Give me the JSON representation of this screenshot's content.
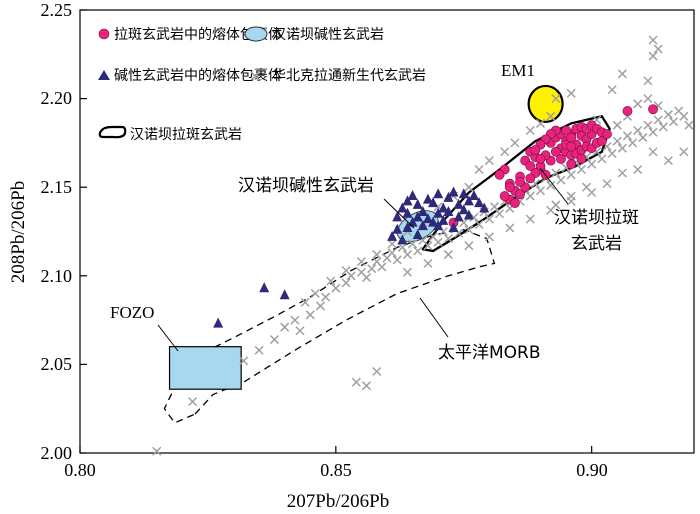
{
  "chart_data": {
    "type": "scatter",
    "xlabel": "207Pb/206Pb",
    "ylabel": "208Pb/206Pb",
    "xlim": [
      0.8,
      0.92
    ],
    "ylim": [
      2.0,
      2.25
    ],
    "xticks": [
      "0.80",
      "0.85",
      "0.90"
    ],
    "yticks": [
      "2.00",
      "2.05",
      "2.10",
      "2.15",
      "2.20",
      "2.25"
    ],
    "legend": {
      "items": [
        {
          "label": "拉斑玄武岩中的熔体包裹体",
          "marker": "circle",
          "color": "#e8237d"
        },
        {
          "label": "碱性玄武岩中的熔体包裹体",
          "marker": "triangle",
          "color": "#2e2a7a"
        },
        {
          "label": "汉诺坝拉斑玄武岩",
          "marker": "outline",
          "color": "#000000"
        },
        {
          "label": "汉诺坝碱性玄武岩",
          "marker": "ellipse",
          "color": "#a8d8ef"
        },
        {
          "label": "华北克拉通新生代玄武岩",
          "marker": "x",
          "color": "#a0a0a0"
        }
      ]
    },
    "annotations": {
      "em1": "EM1",
      "fozo": "FOZO",
      "morb": "太平洋MORB",
      "alkali_field": "汉诺坝碱性玄武岩",
      "tholeiite_field_line1": "汉诺坝拉斑",
      "tholeiite_field_line2": "玄武岩"
    },
    "series": [
      {
        "name": "拉斑玄武岩中的熔体包裹体",
        "marker": "circle",
        "color": "#e8237d",
        "points": [
          [
            0.883,
            2.16
          ],
          [
            0.884,
            2.152
          ],
          [
            0.885,
            2.148
          ],
          [
            0.886,
            2.156
          ],
          [
            0.884,
            2.143
          ],
          [
            0.887,
            2.165
          ],
          [
            0.888,
            2.17
          ],
          [
            0.889,
            2.167
          ],
          [
            0.89,
            2.16
          ],
          [
            0.891,
            2.157
          ],
          [
            0.892,
            2.175
          ],
          [
            0.893,
            2.178
          ],
          [
            0.894,
            2.172
          ],
          [
            0.895,
            2.176
          ],
          [
            0.896,
            2.18
          ],
          [
            0.897,
            2.174
          ],
          [
            0.898,
            2.179
          ],
          [
            0.899,
            2.177
          ],
          [
            0.9,
            2.18
          ],
          [
            0.893,
            2.17
          ],
          [
            0.894,
            2.166
          ],
          [
            0.895,
            2.17
          ],
          [
            0.896,
            2.168
          ],
          [
            0.897,
            2.169
          ],
          [
            0.898,
            2.171
          ],
          [
            0.899,
            2.173
          ],
          [
            0.9,
            2.172
          ],
          [
            0.901,
            2.175
          ],
          [
            0.902,
            2.176
          ],
          [
            0.892,
            2.165
          ],
          [
            0.891,
            2.168
          ],
          [
            0.89,
            2.162
          ],
          [
            0.889,
            2.158
          ],
          [
            0.888,
            2.155
          ],
          [
            0.887,
            2.15
          ],
          [
            0.886,
            2.146
          ],
          [
            0.885,
            2.141
          ],
          [
            0.883,
            2.145
          ],
          [
            0.894,
            2.18
          ],
          [
            0.895,
            2.182
          ],
          [
            0.896,
            2.178
          ],
          [
            0.897,
            2.183
          ],
          [
            0.898,
            2.184
          ],
          [
            0.899,
            2.183
          ],
          [
            0.9,
            2.185
          ],
          [
            0.901,
            2.183
          ],
          [
            0.902,
            2.181
          ],
          [
            0.903,
            2.18
          ],
          [
            0.895,
            2.174
          ],
          [
            0.893,
            2.182
          ],
          [
            0.892,
            2.18
          ],
          [
            0.891,
            2.177
          ],
          [
            0.89,
            2.174
          ],
          [
            0.889,
            2.171
          ],
          [
            0.888,
            2.162
          ],
          [
            0.886,
            2.153
          ],
          [
            0.884,
            2.15
          ],
          [
            0.882,
            2.157
          ],
          [
            0.89,
            2.166
          ],
          [
            0.896,
            2.173
          ],
          [
            0.907,
            2.193
          ],
          [
            0.912,
            2.194
          ],
          [
            0.898,
            2.166
          ],
          [
            0.896,
            2.163
          ],
          [
            0.873,
            2.13
          ]
        ]
      },
      {
        "name": "碱性玄武岩中的熔体包裹体",
        "marker": "triangle",
        "color": "#2e2a7a",
        "points": [
          [
            0.827,
            2.073
          ],
          [
            0.836,
            2.093
          ],
          [
            0.84,
            2.089
          ],
          [
            0.862,
            2.133
          ],
          [
            0.863,
            2.138
          ],
          [
            0.864,
            2.142
          ],
          [
            0.865,
            2.145
          ],
          [
            0.866,
            2.14
          ],
          [
            0.867,
            2.136
          ],
          [
            0.868,
            2.143
          ],
          [
            0.869,
            2.141
          ],
          [
            0.87,
            2.146
          ],
          [
            0.871,
            2.138
          ],
          [
            0.872,
            2.144
          ],
          [
            0.873,
            2.147
          ],
          [
            0.874,
            2.14
          ],
          [
            0.875,
            2.137
          ],
          [
            0.876,
            2.142
          ],
          [
            0.866,
            2.133
          ],
          [
            0.865,
            2.13
          ],
          [
            0.868,
            2.132
          ],
          [
            0.87,
            2.135
          ],
          [
            0.872,
            2.136
          ],
          [
            0.874,
            2.133
          ],
          [
            0.864,
            2.127
          ],
          [
            0.867,
            2.128
          ],
          [
            0.869,
            2.13
          ],
          [
            0.871,
            2.131
          ],
          [
            0.862,
            2.126
          ],
          [
            0.861,
            2.122
          ],
          [
            0.863,
            2.12
          ],
          [
            0.866,
            2.123
          ],
          [
            0.87,
            2.128
          ],
          [
            0.873,
            2.127
          ],
          [
            0.876,
            2.134
          ],
          [
            0.878,
            2.141
          ],
          [
            0.879,
            2.138
          ],
          [
            0.877,
            2.145
          ],
          [
            0.875,
            2.146
          ],
          [
            0.864,
            2.135
          ]
        ]
      },
      {
        "name": "华北克拉通新生代玄武岩",
        "marker": "x",
        "color": "#a0a0a0",
        "points": [
          [
            0.815,
            2.001
          ],
          [
            0.822,
            2.029
          ],
          [
            0.832,
            2.052
          ],
          [
            0.835,
            2.058
          ],
          [
            0.838,
            2.064
          ],
          [
            0.84,
            2.071
          ],
          [
            0.842,
            2.075
          ],
          [
            0.843,
            2.069
          ],
          [
            0.845,
            2.078
          ],
          [
            0.847,
            2.083
          ],
          [
            0.848,
            2.088
          ],
          [
            0.85,
            2.093
          ],
          [
            0.852,
            2.096
          ],
          [
            0.853,
            2.1
          ],
          [
            0.855,
            2.102
          ],
          [
            0.856,
            2.099
          ],
          [
            0.857,
            2.104
          ],
          [
            0.858,
            2.108
          ],
          [
            0.859,
            2.105
          ],
          [
            0.86,
            2.11
          ],
          [
            0.861,
            2.113
          ],
          [
            0.862,
            2.109
          ],
          [
            0.863,
            2.116
          ],
          [
            0.864,
            2.112
          ],
          [
            0.865,
            2.118
          ],
          [
            0.866,
            2.114
          ],
          [
            0.867,
            2.12
          ],
          [
            0.868,
            2.117
          ],
          [
            0.869,
            2.122
          ],
          [
            0.87,
            2.119
          ],
          [
            0.871,
            2.125
          ],
          [
            0.872,
            2.121
          ],
          [
            0.873,
            2.127
          ],
          [
            0.874,
            2.124
          ],
          [
            0.875,
            2.13
          ],
          [
            0.876,
            2.126
          ],
          [
            0.877,
            2.133
          ],
          [
            0.878,
            2.129
          ],
          [
            0.879,
            2.136
          ],
          [
            0.88,
            2.132
          ],
          [
            0.881,
            2.139
          ],
          [
            0.882,
            2.135
          ],
          [
            0.883,
            2.142
          ],
          [
            0.884,
            2.138
          ],
          [
            0.885,
            2.146
          ],
          [
            0.886,
            2.142
          ],
          [
            0.887,
            2.149
          ],
          [
            0.888,
            2.145
          ],
          [
            0.889,
            2.152
          ],
          [
            0.89,
            2.148
          ],
          [
            0.891,
            2.155
          ],
          [
            0.892,
            2.151
          ],
          [
            0.893,
            2.158
          ],
          [
            0.894,
            2.154
          ],
          [
            0.895,
            2.161
          ],
          [
            0.896,
            2.157
          ],
          [
            0.897,
            2.164
          ],
          [
            0.898,
            2.16
          ],
          [
            0.899,
            2.167
          ],
          [
            0.9,
            2.163
          ],
          [
            0.901,
            2.17
          ],
          [
            0.902,
            2.166
          ],
          [
            0.903,
            2.173
          ],
          [
            0.904,
            2.169
          ],
          [
            0.905,
            2.176
          ],
          [
            0.906,
            2.172
          ],
          [
            0.907,
            2.179
          ],
          [
            0.908,
            2.175
          ],
          [
            0.909,
            2.182
          ],
          [
            0.91,
            2.178
          ],
          [
            0.911,
            2.185
          ],
          [
            0.912,
            2.181
          ],
          [
            0.913,
            2.188
          ],
          [
            0.914,
            2.184
          ],
          [
            0.915,
            2.191
          ],
          [
            0.916,
            2.187
          ],
          [
            0.917,
            2.193
          ],
          [
            0.918,
            2.19
          ],
          [
            0.919,
            2.185
          ],
          [
            0.913,
            2.196
          ],
          [
            0.911,
            2.2
          ],
          [
            0.909,
            2.197
          ],
          [
            0.907,
            2.19
          ],
          [
            0.905,
            2.185
          ],
          [
            0.912,
            2.224
          ],
          [
            0.913,
            2.228
          ],
          [
            0.911,
            2.21
          ],
          [
            0.912,
            2.233
          ],
          [
            0.906,
            2.214
          ],
          [
            0.904,
            2.205
          ],
          [
            0.901,
            2.188
          ],
          [
            0.899,
            2.15
          ],
          [
            0.896,
            2.145
          ],
          [
            0.893,
            2.14
          ],
          [
            0.915,
            2.165
          ],
          [
            0.918,
            2.17
          ],
          [
            0.912,
            2.17
          ],
          [
            0.909,
            2.16
          ],
          [
            0.906,
            2.158
          ],
          [
            0.903,
            2.152
          ],
          [
            0.893,
            2.2
          ],
          [
            0.896,
            2.203
          ],
          [
            0.892,
            2.19
          ],
          [
            0.89,
            2.186
          ],
          [
            0.888,
            2.182
          ],
          [
            0.885,
            2.175
          ],
          [
            0.883,
            2.17
          ],
          [
            0.88,
            2.165
          ],
          [
            0.878,
            2.16
          ],
          [
            0.876,
            2.15
          ],
          [
            0.873,
            2.145
          ],
          [
            0.87,
            2.139
          ],
          [
            0.867,
            2.13
          ],
          [
            0.864,
            2.125
          ],
          [
            0.861,
            2.118
          ],
          [
            0.858,
            2.112
          ],
          [
            0.855,
            2.108
          ],
          [
            0.852,
            2.103
          ],
          [
            0.849,
            2.097
          ],
          [
            0.846,
            2.09
          ],
          [
            0.844,
            2.085
          ],
          [
            0.856,
            2.038
          ],
          [
            0.854,
            2.04
          ],
          [
            0.858,
            2.046
          ],
          [
            0.864,
            2.102
          ],
          [
            0.868,
            2.107
          ],
          [
            0.872,
            2.112
          ],
          [
            0.876,
            2.117
          ],
          [
            0.88,
            2.122
          ],
          [
            0.884,
            2.127
          ],
          [
            0.888,
            2.132
          ],
          [
            0.892,
            2.137
          ],
          [
            0.896,
            2.142
          ],
          [
            0.9,
            2.147
          ]
        ]
      }
    ],
    "regions": {
      "em1": {
        "center": [
          0.891,
          2.197
        ],
        "rx": 0.0035,
        "ry": 0.011,
        "color": "#fff200"
      },
      "fozo": {
        "x0": 0.8175,
        "x1": 0.8315,
        "y0": 2.036,
        "y1": 2.06,
        "color": "#a8d8ef"
      },
      "alkali_field": {
        "color": "#a8d8ef"
      },
      "tholeiite_outline": {
        "color": "#000000"
      },
      "morb_outline": {
        "color": "#000000"
      }
    }
  }
}
